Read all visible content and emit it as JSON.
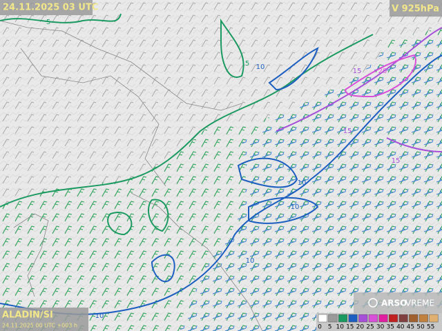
{
  "header": {
    "valid_time": "24.11.2025 03 UTC",
    "level": "V 925hPa"
  },
  "footer": {
    "model": "ALADIN/SI",
    "run": "24.11.2025 00 UTC +003 h",
    "logo_bold": "ARSO",
    "logo_light": "VREME"
  },
  "contour_labels": [
    {
      "text": "5",
      "color": "#1a9a60"
    },
    {
      "text": "5",
      "color": "#1a9a60"
    },
    {
      "text": "10",
      "color": "#1c5fc0"
    },
    {
      "text": "10",
      "color": "#1c5fc0"
    },
    {
      "text": "10",
      "color": "#1c5fc0"
    },
    {
      "text": "10",
      "color": "#1c5fc0"
    },
    {
      "text": "10",
      "color": "#1c5fc0"
    },
    {
      "text": "15",
      "color": "#a64fd8"
    },
    {
      "text": "15",
      "color": "#a64fd8"
    },
    {
      "text": "15",
      "color": "#a64fd8"
    },
    {
      "text": "20",
      "color": "#d84fd8"
    }
  ],
  "legend": {
    "labels": [
      "0",
      "5",
      "10",
      "15",
      "20",
      "25",
      "30",
      "35",
      "40",
      "45",
      "50",
      "55"
    ],
    "colors": [
      "#ffffff",
      "#9a9a9a",
      "#1a9a60",
      "#1c5fc0",
      "#a64fd8",
      "#d84fd8",
      "#e020a0",
      "#c02020",
      "#804040",
      "#a06030",
      "#c08040",
      "#e0b070"
    ]
  }
}
